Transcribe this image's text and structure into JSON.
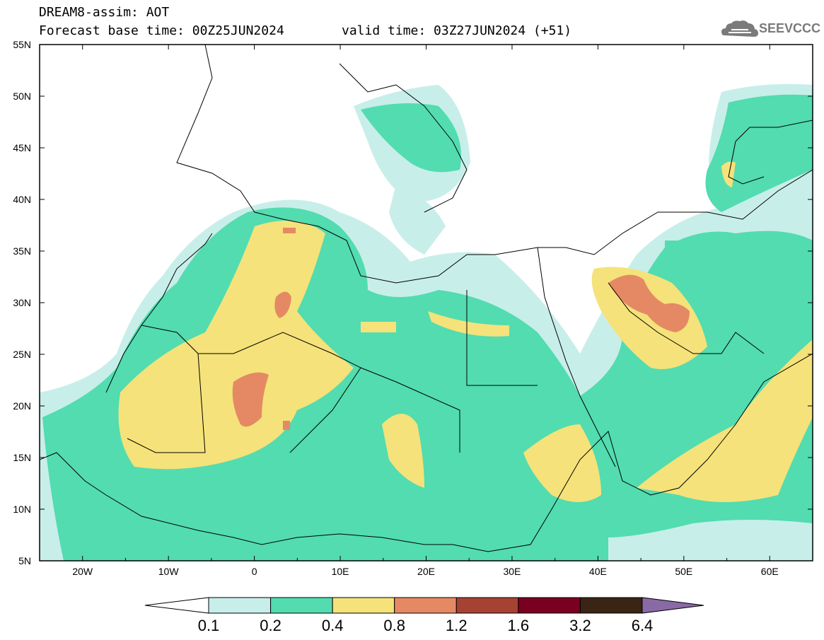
{
  "header": {
    "title": "DREAM8-assim: AOT",
    "base_time": "Forecast base time: 00Z25JUN2024",
    "valid_time": "valid time: 03Z27JUN2024 (+51)"
  },
  "logo": {
    "text": "SEEVCCC",
    "icon": "cloud-icon"
  },
  "map": {
    "lat_labels": [
      "55N",
      "50N",
      "45N",
      "40N",
      "35N",
      "30N",
      "25N",
      "20N",
      "15N",
      "10N",
      "5N"
    ],
    "lon_labels": [
      "20W",
      "10W",
      "0",
      "10E",
      "20E",
      "30E",
      "40E",
      "50E",
      "60E"
    ],
    "lon_range": [
      -25,
      65
    ],
    "lat_range": [
      5,
      55
    ]
  },
  "colorbar": {
    "labels": [
      "0.1",
      "0.2",
      "0.4",
      "0.8",
      "1.2",
      "1.6",
      "3.2",
      "6.4"
    ],
    "colors": [
      "#ffffff",
      "#c8eeea",
      "#52dcb0",
      "#f5e27a",
      "#e58964",
      "#a64234",
      "#7a0022",
      "#3a2414",
      "#8a6aa6"
    ]
  }
}
